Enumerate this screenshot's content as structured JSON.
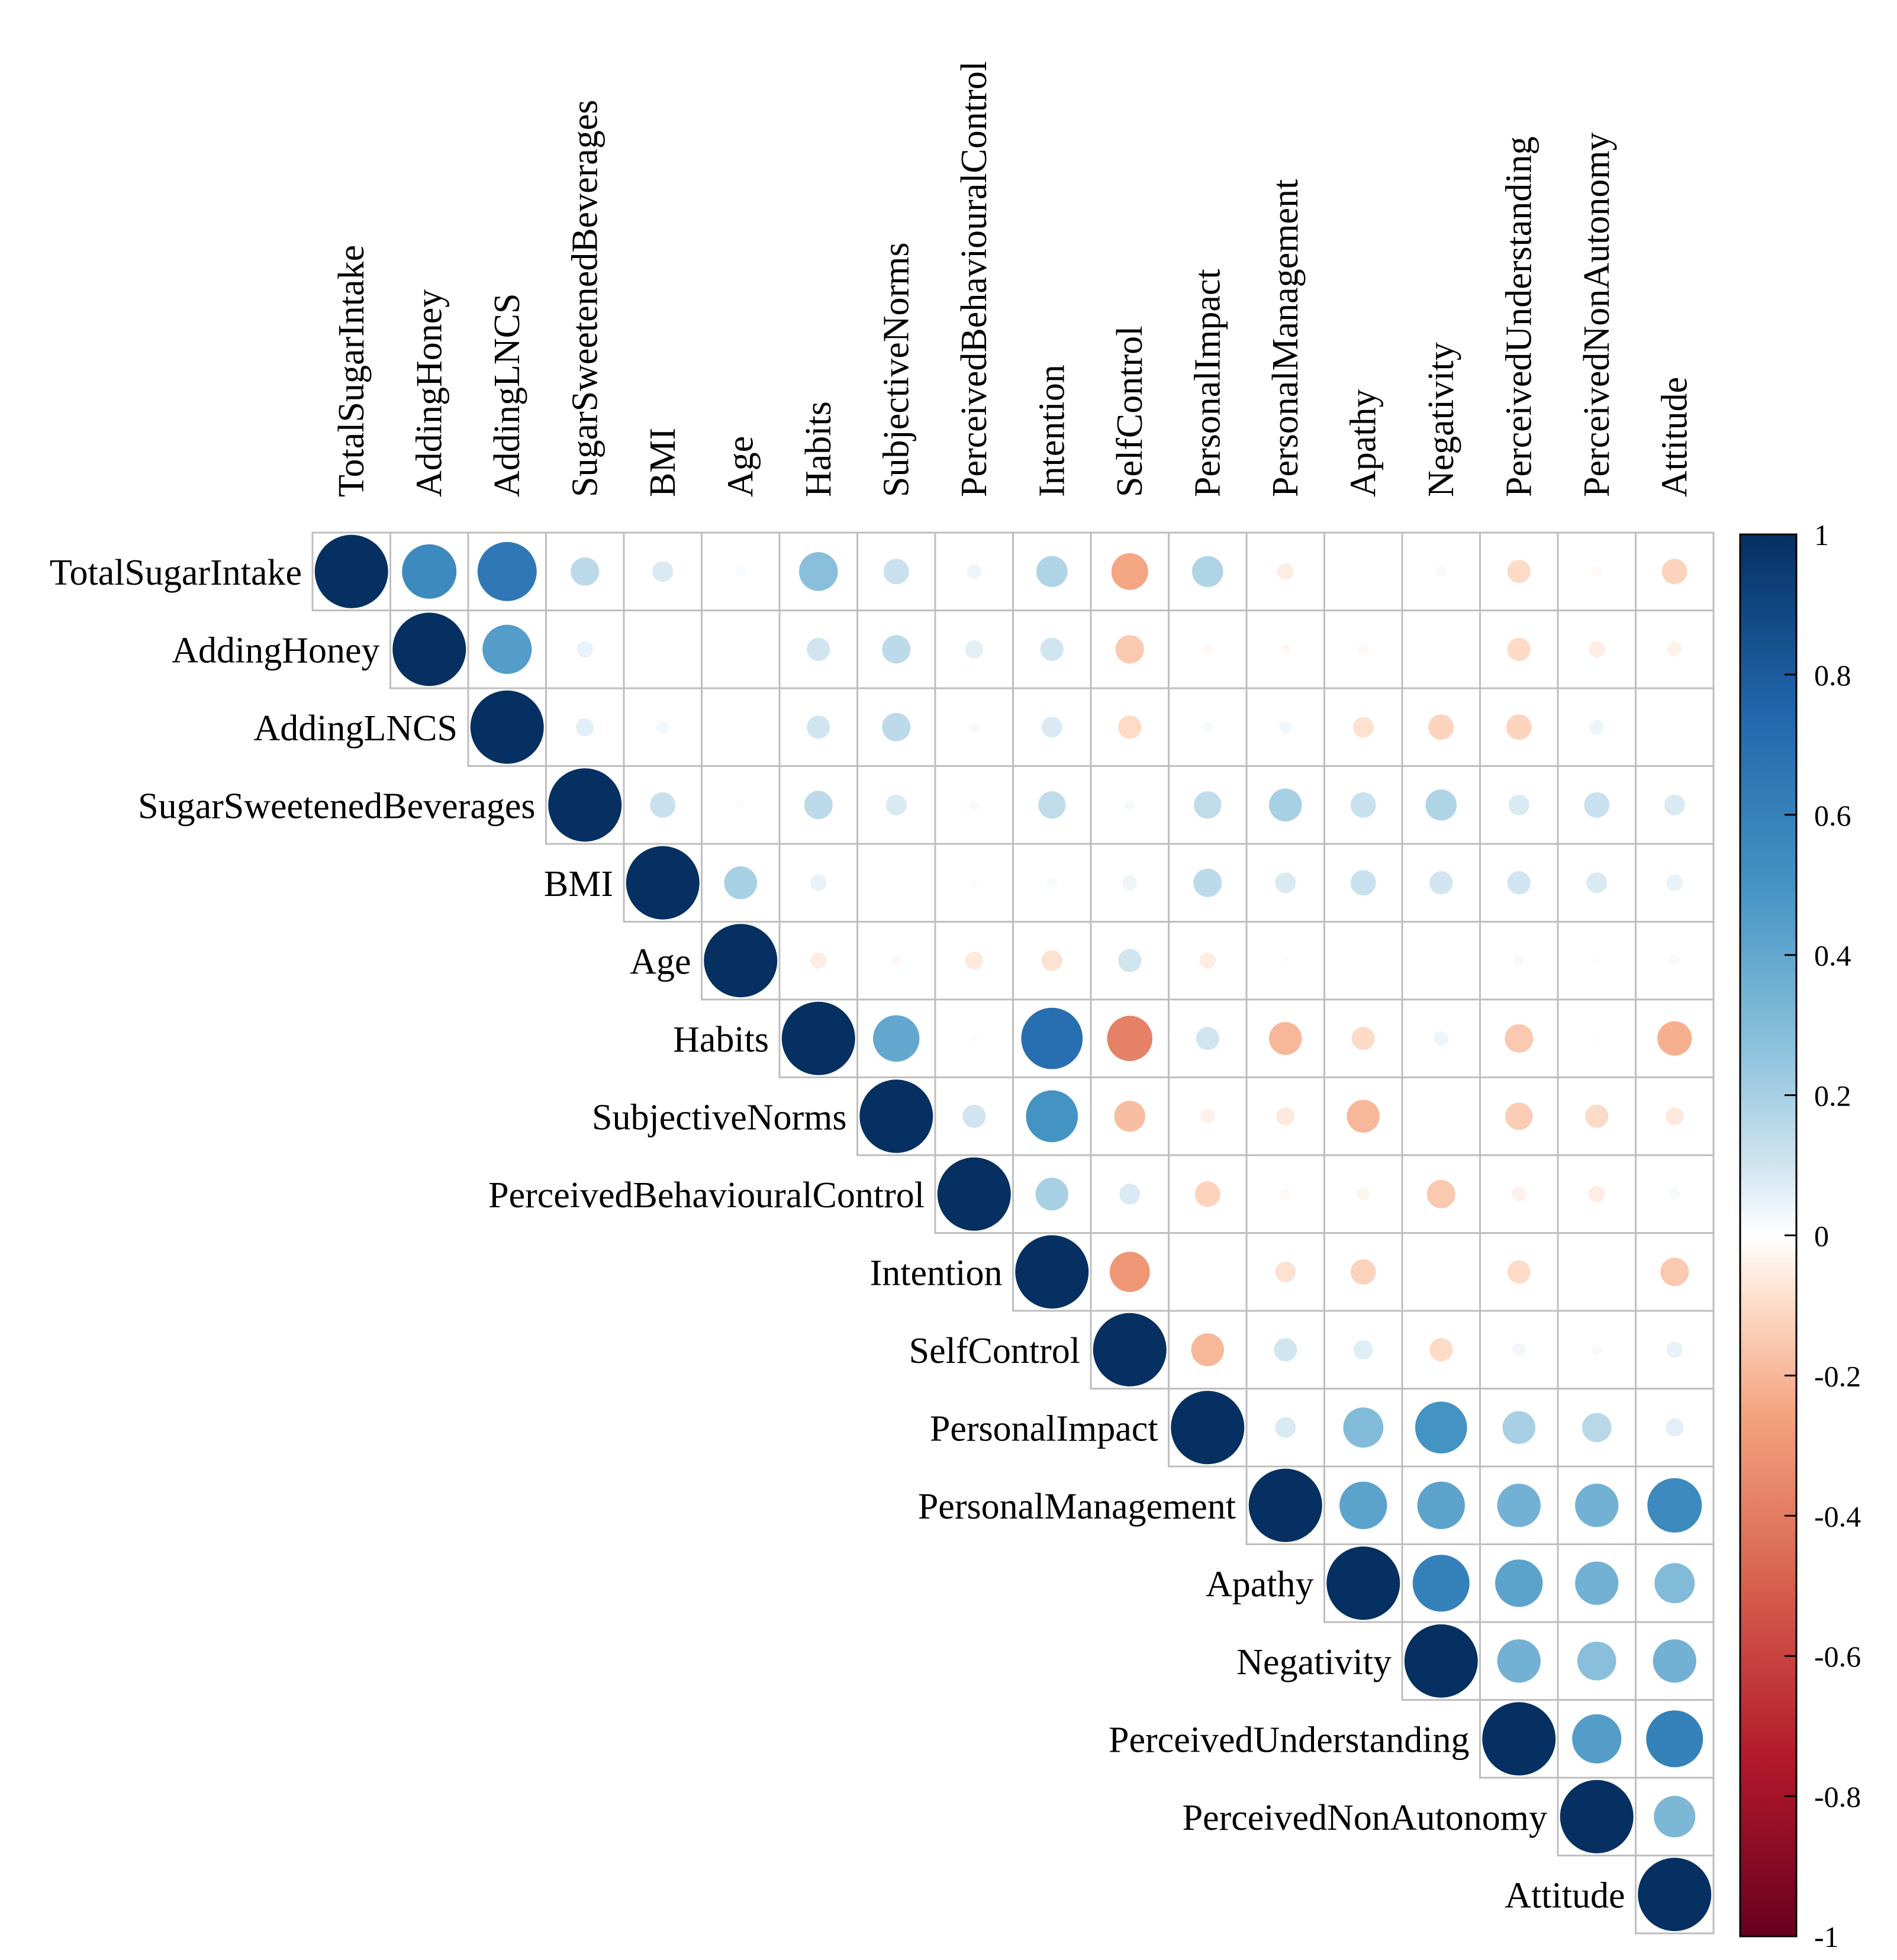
{
  "chart_data": {
    "type": "heatmap",
    "style": "corrplot-upper-circle",
    "variables": [
      "TotalSugarIntake",
      "AddingHoney",
      "AddingLNCS",
      "SugarSweetenedBeverages",
      "BMI",
      "Age",
      "Habits",
      "SubjectiveNorms",
      "PerceivedBehaviouralControl",
      "Intention",
      "SelfControl",
      "PersonalImpact",
      "PersonalManagement",
      "Apathy",
      "Negativity",
      "PerceivedUnderstanding",
      "PerceivedNonAutonomy",
      "Attitude"
    ],
    "matrix": [
      [
        1,
        0.55,
        0.65,
        0.15,
        0.08,
        0.02,
        0.28,
        0.12,
        0.04,
        0.18,
        -0.25,
        0.18,
        -0.05,
        0,
        0.02,
        -0.1,
        -0.02,
        -0.12
      ],
      [
        null,
        1,
        0.45,
        0.05,
        0,
        0,
        0.1,
        0.15,
        0.06,
        0.1,
        -0.15,
        -0.02,
        -0.02,
        -0.02,
        0,
        -0.1,
        -0.05,
        -0.04
      ],
      [
        null,
        null,
        1,
        0.06,
        0.03,
        0,
        0.1,
        0.15,
        0.02,
        0.08,
        -0.1,
        0.02,
        0.03,
        -0.08,
        -0.12,
        -0.12,
        0.04,
        0
      ],
      [
        null,
        null,
        null,
        1,
        0.12,
        0.01,
        0.15,
        0.08,
        0.02,
        0.14,
        0.02,
        0.14,
        0.2,
        0.12,
        0.18,
        0.08,
        0.12,
        0.08
      ],
      [
        null,
        null,
        null,
        null,
        1,
        0.2,
        0.05,
        0,
        0.01,
        0.02,
        0.04,
        0.15,
        0.08,
        0.12,
        0.1,
        0.1,
        0.08,
        0.05
      ],
      [
        null,
        null,
        null,
        null,
        null,
        1,
        -0.05,
        -0.02,
        -0.06,
        -0.08,
        0.1,
        -0.05,
        0.01,
        0,
        0,
        0.02,
        0.01,
        0.02
      ],
      [
        null,
        null,
        null,
        null,
        null,
        null,
        1,
        0.4,
        0.01,
        0.7,
        -0.38,
        0.1,
        -0.2,
        -0.1,
        0.04,
        -0.15,
        0.01,
        -0.22
      ],
      [
        null,
        null,
        null,
        null,
        null,
        null,
        null,
        1,
        0.1,
        0.5,
        -0.18,
        -0.04,
        -0.06,
        -0.2,
        0,
        -0.14,
        -0.1,
        -0.06
      ],
      [
        null,
        null,
        null,
        null,
        null,
        null,
        null,
        null,
        1,
        0.2,
        0.08,
        -0.12,
        -0.02,
        -0.03,
        -0.15,
        -0.04,
        -0.05,
        0.02
      ],
      [
        null,
        null,
        null,
        null,
        null,
        null,
        null,
        null,
        null,
        1,
        -0.3,
        0,
        -0.08,
        -0.12,
        0,
        -0.1,
        0,
        -0.15
      ],
      [
        null,
        null,
        null,
        null,
        null,
        null,
        null,
        null,
        null,
        null,
        1,
        -0.2,
        0.1,
        0.07,
        -0.1,
        0.03,
        0.02,
        0.05
      ],
      [
        null,
        null,
        null,
        null,
        null,
        null,
        null,
        null,
        null,
        null,
        null,
        1,
        0.08,
        0.3,
        0.5,
        0.2,
        0.16,
        0.06
      ],
      [
        null,
        null,
        null,
        null,
        null,
        null,
        null,
        null,
        null,
        null,
        null,
        null,
        1,
        0.42,
        0.42,
        0.35,
        0.35,
        0.55
      ],
      [
        null,
        null,
        null,
        null,
        null,
        null,
        null,
        null,
        null,
        null,
        null,
        null,
        null,
        1,
        0.6,
        0.42,
        0.35,
        0.3
      ],
      [
        null,
        null,
        null,
        null,
        null,
        null,
        null,
        null,
        null,
        null,
        null,
        null,
        null,
        null,
        1,
        0.35,
        0.28,
        0.35
      ],
      [
        null,
        null,
        null,
        null,
        null,
        null,
        null,
        null,
        null,
        null,
        null,
        null,
        null,
        null,
        null,
        1,
        0.45,
        0.6
      ],
      [
        null,
        null,
        null,
        null,
        null,
        null,
        null,
        null,
        null,
        null,
        null,
        null,
        null,
        null,
        null,
        null,
        1,
        0.32
      ],
      [
        null,
        null,
        null,
        null,
        null,
        null,
        null,
        null,
        null,
        null,
        null,
        null,
        null,
        null,
        null,
        null,
        null,
        1
      ]
    ],
    "color_scale": {
      "range": [
        -1,
        1
      ],
      "ticks": [
        "1",
        "0.8",
        "0.6",
        "0.4",
        "0.2",
        "0",
        "-0.2",
        "-0.4",
        "-0.6",
        "-0.8",
        "-1"
      ],
      "tick_values": [
        1,
        0.8,
        0.6,
        0.4,
        0.2,
        0,
        -0.2,
        -0.4,
        -0.6,
        -0.8,
        -1
      ],
      "stops": [
        {
          "v": -1,
          "color": "#67001F"
        },
        {
          "v": -0.75,
          "color": "#B2182B"
        },
        {
          "v": -0.5,
          "color": "#D6604D"
        },
        {
          "v": -0.25,
          "color": "#F4A582"
        },
        {
          "v": -0.1,
          "color": "#FDDBC7"
        },
        {
          "v": 0,
          "color": "#FFFFFF"
        },
        {
          "v": 0.1,
          "color": "#D1E5F0"
        },
        {
          "v": 0.25,
          "color": "#92C5DE"
        },
        {
          "v": 0.5,
          "color": "#4393C3"
        },
        {
          "v": 0.75,
          "color": "#2166AC"
        },
        {
          "v": 1,
          "color": "#053061"
        }
      ]
    },
    "grid_color": "#BEBEBE",
    "legend_position": "right"
  }
}
